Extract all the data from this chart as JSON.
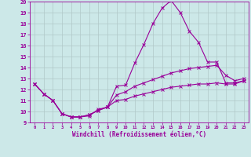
{
  "xlabel": "Windchill (Refroidissement éolien,°C)",
  "xlim": [
    -0.5,
    23.5
  ],
  "ylim": [
    9,
    20
  ],
  "xticks": [
    0,
    1,
    2,
    3,
    4,
    5,
    6,
    7,
    8,
    9,
    10,
    11,
    12,
    13,
    14,
    15,
    16,
    17,
    18,
    19,
    20,
    21,
    22,
    23
  ],
  "yticks": [
    9,
    10,
    11,
    12,
    13,
    14,
    15,
    16,
    17,
    18,
    19,
    20
  ],
  "bg_color": "#cce8e8",
  "line_color": "#990099",
  "grid_color": "#b0c8c8",
  "line1_x": [
    0,
    1,
    2,
    3,
    4,
    5,
    6,
    7,
    8,
    9,
    10,
    11,
    12,
    13,
    14,
    15,
    16,
    17,
    18,
    19,
    20,
    21,
    22,
    23
  ],
  "line1_y": [
    12.5,
    11.6,
    11.0,
    9.8,
    9.5,
    9.5,
    9.6,
    10.2,
    10.4,
    12.3,
    12.4,
    14.4,
    16.1,
    18.0,
    19.4,
    20.1,
    19.0,
    17.3,
    16.3,
    14.5,
    14.5,
    12.6,
    12.6,
    12.8
  ],
  "line2_x": [
    0,
    1,
    2,
    3,
    4,
    5,
    6,
    7,
    8,
    9,
    10,
    11,
    12,
    13,
    14,
    15,
    16,
    17,
    18,
    19,
    20,
    21,
    22,
    23
  ],
  "line2_y": [
    12.5,
    11.6,
    11.0,
    9.8,
    9.5,
    9.5,
    9.7,
    10.1,
    10.4,
    11.5,
    11.8,
    12.3,
    12.6,
    12.9,
    13.2,
    13.5,
    13.7,
    13.9,
    14.0,
    14.1,
    14.2,
    13.3,
    12.8,
    13.0
  ],
  "line3_x": [
    0,
    1,
    2,
    3,
    4,
    5,
    6,
    7,
    8,
    9,
    10,
    11,
    12,
    13,
    14,
    15,
    16,
    17,
    18,
    19,
    20,
    21,
    22,
    23
  ],
  "line3_y": [
    12.5,
    11.6,
    11.0,
    9.8,
    9.5,
    9.5,
    9.7,
    10.1,
    10.4,
    11.0,
    11.1,
    11.4,
    11.6,
    11.8,
    12.0,
    12.2,
    12.3,
    12.4,
    12.5,
    12.5,
    12.6,
    12.5,
    12.5,
    12.8
  ],
  "tick_fontsize": 5,
  "xlabel_fontsize": 5.5
}
